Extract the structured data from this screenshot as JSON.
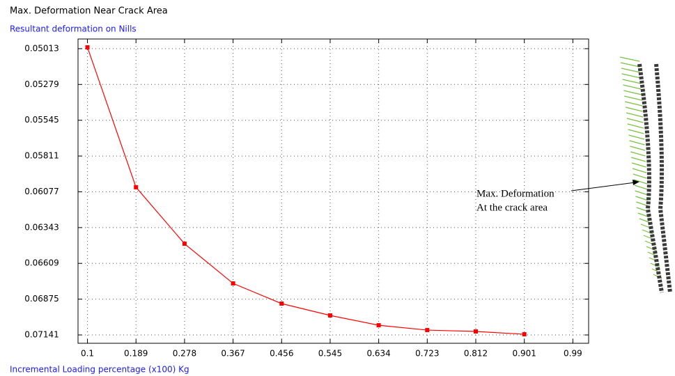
{
  "chart_data": {
    "type": "line",
    "title": "Max. Deformation Near Crack Area",
    "subtitle": "Resultant deformation on Nills",
    "x_label": "Incremental Loading percentage (x100) Kg",
    "annotation": [
      "Max. Deformation",
      "At the crack area"
    ],
    "x": [
      0.1,
      0.189,
      0.278,
      0.367,
      0.456,
      0.545,
      0.634,
      0.723,
      0.812,
      0.901,
      0.99
    ],
    "series": [
      {
        "color": "#ff0000",
        "values": [
          0.05003,
          0.06043,
          0.06463,
          0.06758,
          0.06908,
          0.06996,
          0.07069,
          0.07105,
          0.07115,
          0.07136,
          null
        ]
      }
    ],
    "xlim": [
      0.0827,
      1.0189
    ],
    "ylim": [
      0.07203,
      0.04941
    ],
    "xticks": [
      0.1,
      0.189,
      0.278,
      0.367,
      0.456,
      0.545,
      0.634,
      0.723,
      0.812,
      0.901,
      0.99
    ],
    "yticks": [
      0.05013,
      0.05279,
      0.05545,
      0.05811,
      0.06077,
      0.06343,
      0.06609,
      0.06875,
      0.07141
    ],
    "grid": true
  }
}
